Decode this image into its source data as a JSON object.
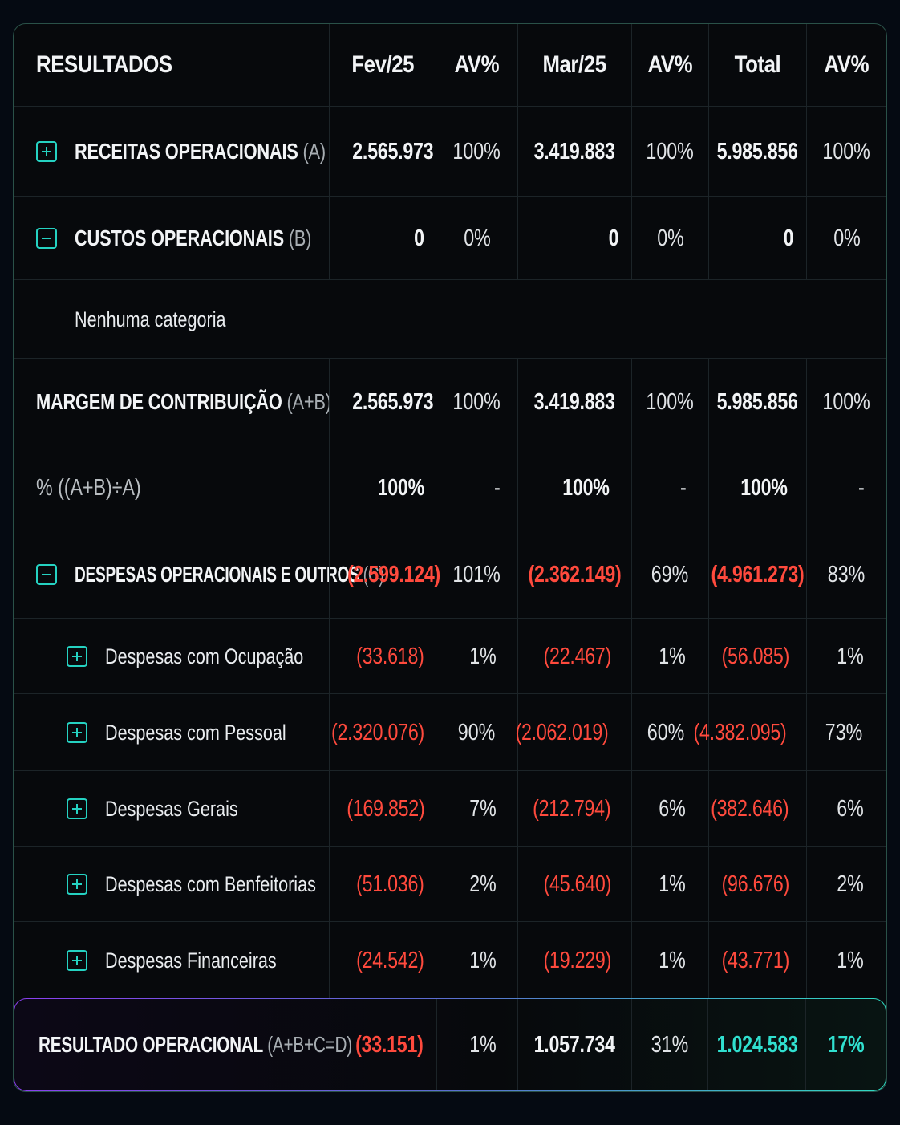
{
  "header": {
    "title": "RESULTADOS",
    "col1": "Fev/25",
    "col2": "AV%",
    "col3": "Mar/25",
    "col4": "AV%",
    "col5": "Total",
    "col6": "AV%"
  },
  "receitas": {
    "label": "RECEITAS OPERACIONAIS",
    "suffix": "(A)",
    "toggle": "+",
    "values": [
      "2.565.973",
      "100%",
      "3.419.883",
      "100%",
      "5.985.856",
      "100%"
    ]
  },
  "custos": {
    "label": "CUSTOS OPERACIONAIS",
    "suffix": "(B)",
    "toggle": "−",
    "values": [
      "0",
      "0%",
      "0",
      "0%",
      "0",
      "0%"
    ]
  },
  "nenhuma": {
    "label": "Nenhuma categoria"
  },
  "margem": {
    "label": "MARGEM DE CONTRIBUIÇÃO",
    "suffix": "(A+B)",
    "values": [
      "2.565.973",
      "100%",
      "3.419.883",
      "100%",
      "5.985.856",
      "100%"
    ]
  },
  "percentual": {
    "label": "% ((A+B)÷A)",
    "values": [
      "100%",
      "-",
      "100%",
      "-",
      "100%",
      "-"
    ]
  },
  "despesas": {
    "label": "DESPESAS OPERACIONAIS E OUTROS",
    "suffix": "(C)",
    "toggle": "−",
    "values": [
      "(2.599.124)",
      "101%",
      "(2.362.149)",
      "69%",
      "(4.961.273)",
      "83%"
    ]
  },
  "subrows": [
    {
      "label": "Despesas com Ocupação",
      "values": [
        "(33.618)",
        "1%",
        "(22.467)",
        "1%",
        "(56.085)",
        "1%"
      ]
    },
    {
      "label": "Despesas com Pessoal",
      "values": [
        "(2.320.076)",
        "90%",
        "(2.062.019)",
        "60%",
        "(4.382.095)",
        "73%"
      ]
    },
    {
      "label": "Despesas Gerais",
      "values": [
        "(169.852)",
        "7%",
        "(212.794)",
        "6%",
        "(382.646)",
        "6%"
      ]
    },
    {
      "label": "Despesas com Benfeitorias",
      "values": [
        "(51.036)",
        "2%",
        "(45.640)",
        "1%",
        "(96.676)",
        "2%"
      ]
    },
    {
      "label": "Despesas Financeiras",
      "values": [
        "(24.542)",
        "1%",
        "(19.229)",
        "1%",
        "(43.771)",
        "1%"
      ]
    }
  ],
  "resultado": {
    "label": "RESULTADO OPERACIONAL",
    "suffix": "(A+B+C=D)",
    "values": [
      "(33.151)",
      "1%",
      "1.057.734",
      "31%",
      "1.024.583",
      "17%"
    ]
  },
  "colors": {
    "accent": "#25d2c2",
    "negative": "#ff4a3d",
    "total_highlight": "#30e0cf"
  },
  "icons": {
    "expand": "plus-square-icon",
    "collapse": "minus-square-icon"
  }
}
